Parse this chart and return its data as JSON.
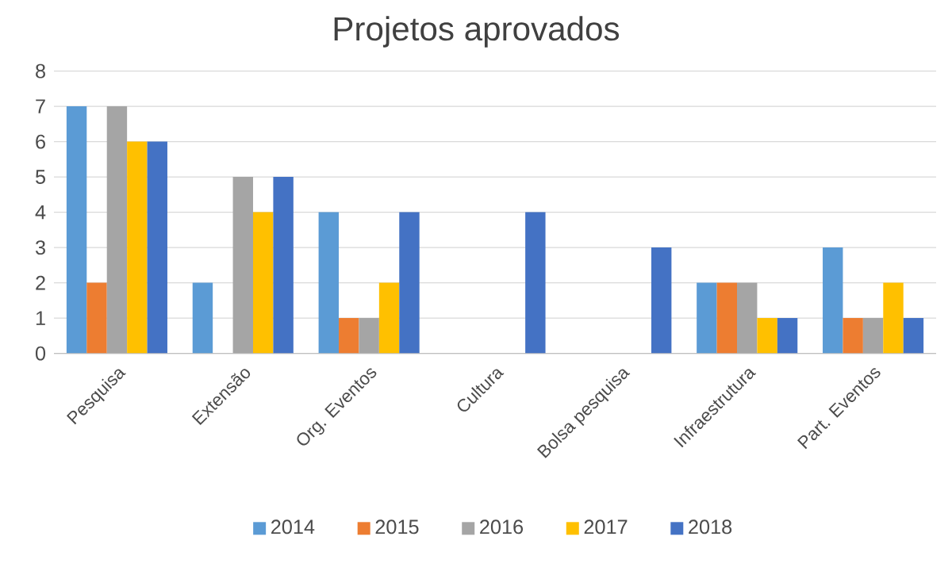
{
  "chart_data": {
    "type": "bar",
    "title": "Projetos aprovados",
    "categories": [
      "Pesquisa",
      "Extensão",
      "Org. Eventos",
      "Cultura",
      "Bolsa pesquisa",
      "Infraestrutura",
      "Part. Eventos"
    ],
    "series": [
      {
        "name": "2014",
        "color": "#5b9bd5",
        "values": [
          7,
          2,
          4,
          0,
          0,
          2,
          3
        ]
      },
      {
        "name": "2015",
        "color": "#ed7d31",
        "values": [
          2,
          0,
          1,
          0,
          0,
          2,
          1
        ]
      },
      {
        "name": "2016",
        "color": "#a5a5a5",
        "values": [
          7,
          5,
          1,
          0,
          0,
          2,
          1
        ]
      },
      {
        "name": "2017",
        "color": "#ffc000",
        "values": [
          6,
          4,
          2,
          0,
          0,
          1,
          2
        ]
      },
      {
        "name": "2018",
        "color": "#4472c4",
        "values": [
          6,
          5,
          4,
          4,
          3,
          1,
          1
        ]
      }
    ],
    "ylim": [
      0,
      8
    ],
    "yticks": [
      0,
      1,
      2,
      3,
      4,
      5,
      6,
      7,
      8
    ],
    "grid": "y",
    "legend": "bottom"
  }
}
